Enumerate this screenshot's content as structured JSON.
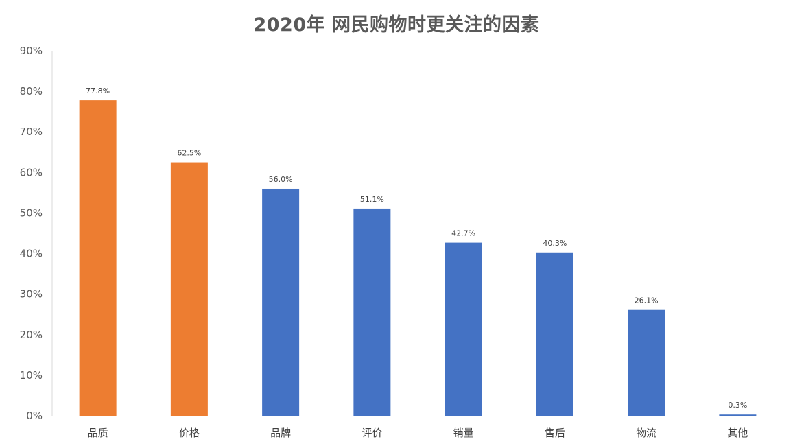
{
  "chart_data": {
    "type": "bar",
    "title": "2020年 网民购物时更关注的因素",
    "xlabel": "",
    "ylabel": "",
    "categories": [
      "品质",
      "价格",
      "品牌",
      "评价",
      "销量",
      "售后",
      "物流",
      "其他"
    ],
    "values": [
      77.8,
      62.5,
      56.0,
      51.1,
      42.7,
      40.3,
      26.1,
      0.3
    ],
    "data_labels": [
      "77.8%",
      "62.5%",
      "56.0%",
      "51.1%",
      "42.7%",
      "40.3%",
      "26.1%",
      "0.3%"
    ],
    "bar_colors": [
      "#ED7D31",
      "#ED7D31",
      "#4472C4",
      "#4472C4",
      "#4472C4",
      "#4472C4",
      "#4472C4",
      "#4472C4"
    ],
    "ylim": [
      0,
      90
    ],
    "y_ticks": [
      "0%",
      "10%",
      "20%",
      "30%",
      "40%",
      "50%",
      "60%",
      "70%",
      "80%",
      "90%"
    ],
    "grid": false,
    "legend": "none"
  }
}
